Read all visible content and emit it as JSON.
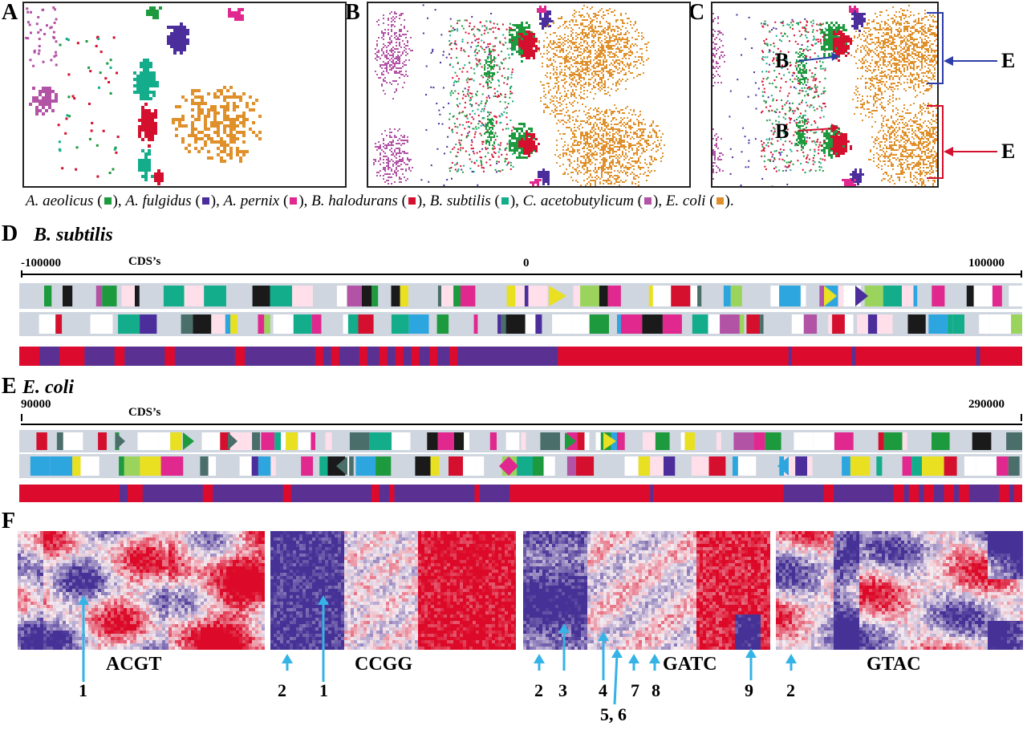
{
  "colors": {
    "aeolicus": "#1e9a3e",
    "fulgidus": "#4b2d9c",
    "pernix": "#e0288e",
    "halodurans": "#d4102e",
    "subtilis": "#14ad8c",
    "acetobutylicum": "#b253a6",
    "coli": "#e0902a",
    "track_bg": "#cfd6df",
    "palindrome_red": "#dc0b2e",
    "palindrome_blue": "#5a3192",
    "arrow_blue": "#2e3ea8",
    "arrow_red": "#d4102e",
    "pointer_cyan": "#35b3e6"
  },
  "panels": {
    "a_letter": "A",
    "b_letter": "B",
    "c_letter": "C",
    "d_letter": "D",
    "e_letter": "E",
    "f_letter": "F"
  },
  "callouts": {
    "b_upper": "B",
    "b_lower": "B",
    "e_upper": "E",
    "e_lower": "E"
  },
  "legend": [
    {
      "name": "A. aeolicus",
      "color_key": "aeolicus",
      "sep": ", "
    },
    {
      "name": "A. fulgidus",
      "color_key": "fulgidus",
      "sep": ", "
    },
    {
      "name": "A. pernix",
      "color_key": "pernix",
      "sep": ", "
    },
    {
      "name": "B. halodurans",
      "color_key": "halodurans",
      "sep": ", "
    },
    {
      "name": "B. subtilis",
      "color_key": "subtilis",
      "sep": ", "
    },
    {
      "name": "C. acetobutylicum",
      "color_key": "acetobutylicum",
      "sep": ", "
    },
    {
      "name": "E. coli",
      "color_key": "coli",
      "sep": "."
    }
  ],
  "panel_d": {
    "species": "B. subtilis",
    "cds_label": "CDS’s",
    "axis_start": "-100000",
    "axis_mid": "0",
    "axis_end": "100000"
  },
  "panel_e": {
    "species": "E. coli",
    "cds_label": "CDS’s",
    "axis_start": "90000",
    "axis_end": "290000"
  },
  "panel_f": {
    "maps": [
      {
        "word": "ACGT"
      },
      {
        "word": "CCGG"
      },
      {
        "word": "GATC"
      },
      {
        "word": "GTAC"
      }
    ],
    "markers": [
      "1",
      "2",
      "1",
      "2",
      "3",
      "4",
      "5, 6",
      "7",
      "8",
      "9",
      "2"
    ]
  },
  "palindrome_track_d": {
    "description_segments": "red/blue runs",
    "runs": [
      [
        "r",
        0.02
      ],
      [
        "b",
        0.02
      ],
      [
        "r",
        0.025
      ],
      [
        "b",
        0.03
      ],
      [
        "r",
        0.01
      ],
      [
        "b",
        0.04
      ],
      [
        "r",
        0.01
      ],
      [
        "b",
        0.06
      ],
      [
        "r",
        0.01
      ],
      [
        "b",
        0.07
      ],
      [
        "r",
        0.008
      ],
      [
        "b",
        0.008
      ],
      [
        "r",
        0.008
      ],
      [
        "b",
        0.02
      ],
      [
        "r",
        0.008
      ],
      [
        "b",
        0.012
      ],
      [
        "r",
        0.008
      ],
      [
        "b",
        0.008
      ],
      [
        "r",
        0.008
      ],
      [
        "b",
        0.008
      ],
      [
        "r",
        0.008
      ],
      [
        "b",
        0.01
      ],
      [
        "r",
        0.008
      ],
      [
        "b",
        0.012
      ],
      [
        "r",
        0.008
      ],
      [
        "b",
        0.1
      ],
      [
        "r",
        0.23
      ],
      [
        "b",
        0.003
      ],
      [
        "r",
        0.06
      ],
      [
        "b",
        0.004
      ],
      [
        "r",
        0.12
      ],
      [
        "b",
        0.004
      ],
      [
        "r",
        0.12
      ],
      [
        "b",
        0.004
      ],
      [
        "r",
        0.145
      ]
    ]
  },
  "palindrome_track_e": {
    "description_segments": "red/blue runs",
    "runs": [
      [
        "r",
        0.1
      ],
      [
        "b",
        0.008
      ],
      [
        "r",
        0.015
      ],
      [
        "b",
        0.06
      ],
      [
        "r",
        0.01
      ],
      [
        "b",
        0.07
      ],
      [
        "r",
        0.008
      ],
      [
        "b",
        0.08
      ],
      [
        "r",
        0.008
      ],
      [
        "b",
        0.01
      ],
      [
        "r",
        0.005
      ],
      [
        "b",
        0.08
      ],
      [
        "r",
        0.005
      ],
      [
        "b",
        0.03
      ],
      [
        "r",
        0.14
      ],
      [
        "b",
        0.003
      ],
      [
        "r",
        0.13
      ],
      [
        "b",
        0.04
      ],
      [
        "r",
        0.01
      ],
      [
        "b",
        0.06
      ],
      [
        "r",
        0.01
      ],
      [
        "b",
        0.005
      ],
      [
        "r",
        0.01
      ],
      [
        "b",
        0.005
      ],
      [
        "r",
        0.01
      ],
      [
        "b",
        0.01
      ],
      [
        "r",
        0.01
      ],
      [
        "b",
        0.005
      ],
      [
        "r",
        0.01
      ],
      [
        "b",
        0.03
      ],
      [
        "r",
        0.01
      ],
      [
        "b",
        0.005
      ],
      [
        "r",
        0.01
      ],
      [
        "b",
        0.03
      ],
      [
        "r",
        0.005
      ],
      [
        "b",
        0.005
      ],
      [
        "r",
        0.01
      ],
      [
        "b",
        0.005
      ],
      [
        "r",
        0.04
      ],
      [
        "b",
        0.03
      ],
      [
        "r",
        0.007
      ]
    ]
  }
}
